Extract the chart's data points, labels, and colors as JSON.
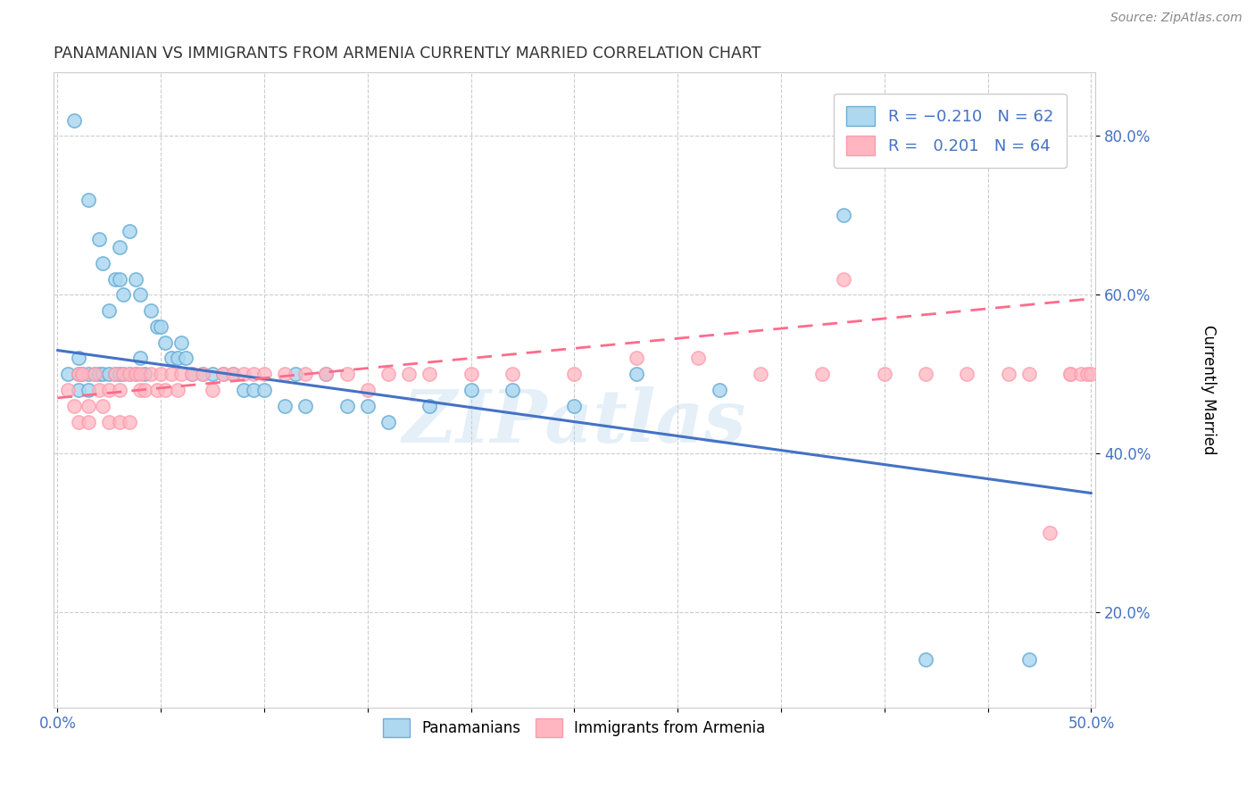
{
  "title": "PANAMANIAN VS IMMIGRANTS FROM ARMENIA CURRENTLY MARRIED CORRELATION CHART",
  "source": "Source: ZipAtlas.com",
  "ylabel": "Currently Married",
  "xlim": [
    -0.002,
    0.502
  ],
  "ylim": [
    0.08,
    0.88
  ],
  "xticks": [
    0.0,
    0.05,
    0.1,
    0.15,
    0.2,
    0.25,
    0.3,
    0.35,
    0.4,
    0.45,
    0.5
  ],
  "yticks": [
    0.2,
    0.4,
    0.6,
    0.8
  ],
  "color_blue_fill": "#ADD8F0",
  "color_blue_edge": "#6BAED6",
  "color_blue_line": "#4472C4",
  "color_pink_fill": "#FFB6C1",
  "color_pink_edge": "#FF9AAB",
  "color_pink_line": "#FF6B8A",
  "watermark": "ZIPatlas",
  "blue_points_x": [
    0.005,
    0.008,
    0.01,
    0.01,
    0.01,
    0.012,
    0.015,
    0.015,
    0.015,
    0.018,
    0.02,
    0.02,
    0.022,
    0.022,
    0.025,
    0.025,
    0.028,
    0.028,
    0.03,
    0.03,
    0.03,
    0.032,
    0.032,
    0.035,
    0.035,
    0.038,
    0.038,
    0.04,
    0.04,
    0.042,
    0.045,
    0.048,
    0.05,
    0.052,
    0.055,
    0.058,
    0.06,
    0.062,
    0.065,
    0.07,
    0.075,
    0.08,
    0.085,
    0.09,
    0.095,
    0.1,
    0.11,
    0.115,
    0.12,
    0.13,
    0.14,
    0.15,
    0.16,
    0.18,
    0.2,
    0.22,
    0.25,
    0.28,
    0.32,
    0.38,
    0.42,
    0.47
  ],
  "blue_points_y": [
    0.5,
    0.82,
    0.5,
    0.52,
    0.48,
    0.5,
    0.72,
    0.5,
    0.48,
    0.5,
    0.67,
    0.5,
    0.64,
    0.5,
    0.5,
    0.58,
    0.62,
    0.5,
    0.66,
    0.62,
    0.5,
    0.6,
    0.5,
    0.68,
    0.5,
    0.62,
    0.5,
    0.6,
    0.52,
    0.5,
    0.58,
    0.56,
    0.56,
    0.54,
    0.52,
    0.52,
    0.54,
    0.52,
    0.5,
    0.5,
    0.5,
    0.5,
    0.5,
    0.48,
    0.48,
    0.48,
    0.46,
    0.5,
    0.46,
    0.5,
    0.46,
    0.46,
    0.44,
    0.46,
    0.48,
    0.48,
    0.46,
    0.5,
    0.48,
    0.7,
    0.14,
    0.14
  ],
  "pink_points_x": [
    0.005,
    0.008,
    0.01,
    0.01,
    0.012,
    0.015,
    0.015,
    0.018,
    0.02,
    0.022,
    0.025,
    0.025,
    0.028,
    0.03,
    0.03,
    0.032,
    0.035,
    0.035,
    0.038,
    0.04,
    0.04,
    0.042,
    0.045,
    0.048,
    0.05,
    0.052,
    0.055,
    0.058,
    0.06,
    0.065,
    0.07,
    0.075,
    0.08,
    0.085,
    0.09,
    0.095,
    0.1,
    0.11,
    0.12,
    0.13,
    0.14,
    0.15,
    0.16,
    0.17,
    0.18,
    0.2,
    0.22,
    0.25,
    0.28,
    0.31,
    0.34,
    0.37,
    0.38,
    0.4,
    0.42,
    0.44,
    0.46,
    0.47,
    0.48,
    0.49,
    0.49,
    0.495,
    0.498,
    0.5
  ],
  "pink_points_y": [
    0.48,
    0.46,
    0.5,
    0.44,
    0.5,
    0.46,
    0.44,
    0.5,
    0.48,
    0.46,
    0.48,
    0.44,
    0.5,
    0.48,
    0.44,
    0.5,
    0.5,
    0.44,
    0.5,
    0.5,
    0.48,
    0.48,
    0.5,
    0.48,
    0.5,
    0.48,
    0.5,
    0.48,
    0.5,
    0.5,
    0.5,
    0.48,
    0.5,
    0.5,
    0.5,
    0.5,
    0.5,
    0.5,
    0.5,
    0.5,
    0.5,
    0.48,
    0.5,
    0.5,
    0.5,
    0.5,
    0.5,
    0.5,
    0.52,
    0.52,
    0.5,
    0.5,
    0.62,
    0.5,
    0.5,
    0.5,
    0.5,
    0.5,
    0.3,
    0.5,
    0.5,
    0.5,
    0.5,
    0.5
  ]
}
